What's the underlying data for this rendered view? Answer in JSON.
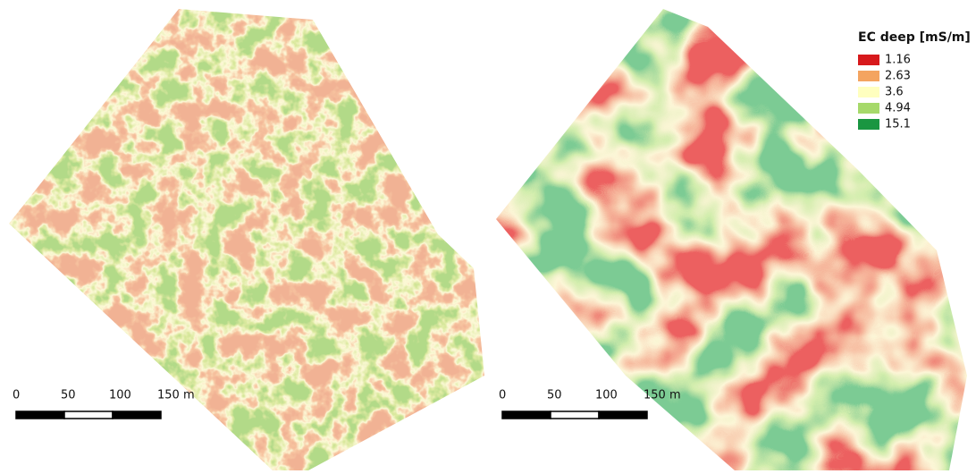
{
  "legend": {
    "title": "EC deep [mS/m]",
    "items": [
      {
        "label": "1.16",
        "color": "#d7191c"
      },
      {
        "label": "2.63",
        "color": "#f4a460"
      },
      {
        "label": "3.6",
        "color": "#ffffbf"
      },
      {
        "label": "4.94",
        "color": "#a6d96a"
      },
      {
        "label": "15.1",
        "color": "#1a9641"
      }
    ]
  },
  "scale_bars": [
    {
      "labels": [
        "0",
        "50",
        "100",
        "150 m"
      ]
    },
    {
      "labels": [
        "0",
        "50",
        "100",
        "150 m"
      ]
    }
  ]
}
